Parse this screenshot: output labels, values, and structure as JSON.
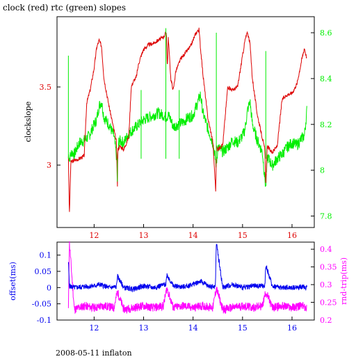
{
  "title": "clock (red) rtc (green) slopes",
  "footer": "2008-05-11 inflaton",
  "colors": {
    "clock": "#dd0000",
    "rtc": "#00ee00",
    "offset": "#0000ee",
    "rtt": "#ff00ff",
    "axis": "#000000"
  },
  "chart_data": [
    {
      "type": "line",
      "title": "clock (red) rtc (green) slopes",
      "ylabel": "clockslope",
      "xlim": [
        11.25,
        16.45
      ],
      "ylim": [
        2.6,
        3.95
      ],
      "y2lim": [
        7.75,
        8.67
      ],
      "xticks": [
        "12",
        "13",
        "14",
        "15",
        "16"
      ],
      "yticks": [
        "3",
        "3.5"
      ],
      "y2ticks": [
        "7.8",
        "8",
        "8.2",
        "8.4",
        "8.6"
      ],
      "series": [
        {
          "name": "clock",
          "axis": "left",
          "x": [
            11.48,
            11.5,
            11.53,
            11.6,
            11.7,
            11.8,
            11.85,
            11.92,
            12.0,
            12.05,
            12.1,
            12.15,
            12.2,
            12.3,
            12.45,
            12.47,
            12.48,
            12.52,
            12.6,
            12.7,
            12.75,
            12.8,
            12.85,
            12.9,
            12.95,
            13.0,
            13.1,
            13.2,
            13.3,
            13.4,
            13.46,
            13.48,
            13.5,
            13.55,
            13.6,
            13.65,
            13.75,
            13.85,
            13.95,
            14.05,
            14.12,
            14.15,
            14.2,
            14.3,
            14.4,
            14.46,
            14.47,
            14.5,
            14.6,
            14.7,
            14.8,
            14.9,
            15.0,
            15.05,
            15.1,
            15.15,
            15.2,
            15.3,
            15.45,
            15.47,
            15.5,
            15.6,
            15.7,
            15.8,
            15.9,
            16.0,
            16.1,
            16.2,
            16.25,
            16.3
          ],
          "values": [
            3.06,
            2.68,
            3.02,
            3.03,
            3.04,
            3.06,
            3.4,
            3.48,
            3.62,
            3.75,
            3.8,
            3.76,
            3.55,
            3.38,
            3.15,
            2.85,
            3.1,
            3.12,
            3.1,
            3.18,
            3.5,
            3.54,
            3.56,
            3.65,
            3.7,
            3.74,
            3.77,
            3.78,
            3.8,
            3.82,
            3.85,
            3.62,
            3.82,
            3.55,
            3.48,
            3.6,
            3.68,
            3.72,
            3.76,
            3.84,
            3.87,
            3.75,
            3.58,
            3.3,
            3.15,
            2.82,
            3.12,
            3.1,
            3.13,
            3.5,
            3.48,
            3.5,
            3.7,
            3.8,
            3.85,
            3.78,
            3.55,
            3.32,
            3.1,
            2.88,
            3.12,
            3.08,
            3.12,
            3.42,
            3.45,
            3.46,
            3.52,
            3.68,
            3.75,
            3.68
          ]
        },
        {
          "name": "rtc",
          "axis": "right",
          "x": [
            11.48,
            11.5,
            11.55,
            11.6,
            11.7,
            11.8,
            11.9,
            12.0,
            12.05,
            12.1,
            12.15,
            12.2,
            12.3,
            12.4,
            12.47,
            12.5,
            12.6,
            12.7,
            12.8,
            12.9,
            13.0,
            13.1,
            13.2,
            13.3,
            13.4,
            13.45,
            13.5,
            13.55,
            13.6,
            13.7,
            13.8,
            13.9,
            14.0,
            14.1,
            14.15,
            14.2,
            14.3,
            14.4,
            14.47,
            14.5,
            14.6,
            14.7,
            14.8,
            14.9,
            15.0,
            15.05,
            15.1,
            15.15,
            15.2,
            15.3,
            15.4,
            15.47,
            15.5,
            15.6,
            15.7,
            15.8,
            15.9,
            16.0,
            16.1,
            16.2,
            16.25,
            16.3
          ],
          "values": [
            8.07,
            8.05,
            8.08,
            8.07,
            8.12,
            8.13,
            8.15,
            8.2,
            8.22,
            8.28,
            8.3,
            8.23,
            8.2,
            8.15,
            8.03,
            8.13,
            8.12,
            8.16,
            8.18,
            8.2,
            8.22,
            8.23,
            8.24,
            8.25,
            8.24,
            8.23,
            8.24,
            8.22,
            8.19,
            8.2,
            8.21,
            8.23,
            8.24,
            8.3,
            8.33,
            8.25,
            8.18,
            8.12,
            8.02,
            8.1,
            8.08,
            8.1,
            8.13,
            8.12,
            8.15,
            8.18,
            8.26,
            8.3,
            8.2,
            8.13,
            8.08,
            7.92,
            8.06,
            8.02,
            8.05,
            8.07,
            8.1,
            8.12,
            8.11,
            8.14,
            8.15,
            8.26
          ]
        }
      ]
    },
    {
      "type": "line",
      "xlim": [
        11.25,
        16.45
      ],
      "ylabel": "offset(ms)",
      "y2label": "rnd-trip(ms)",
      "ylim": [
        -0.1,
        0.14
      ],
      "y2lim": [
        0.2,
        0.42
      ],
      "xticks": [
        "12",
        "13",
        "14",
        "15",
        "16"
      ],
      "yticks": [
        "-0.1",
        "-0.05",
        "0",
        "0.05",
        "0.1"
      ],
      "y2ticks": [
        "0.2",
        "0.25",
        "0.3",
        "0.35",
        "0.4"
      ],
      "series": [
        {
          "name": "offset",
          "axis": "left",
          "x": [
            11.48,
            11.5,
            11.6,
            11.8,
            12.0,
            12.1,
            12.2,
            12.3,
            12.45,
            12.47,
            12.6,
            12.8,
            13.0,
            13.2,
            13.45,
            13.47,
            13.6,
            13.8,
            14.0,
            14.15,
            14.3,
            14.45,
            14.47,
            14.6,
            14.8,
            15.0,
            15.2,
            15.45,
            15.47,
            15.6,
            15.8,
            16.0,
            16.2,
            16.3
          ],
          "values": [
            0.08,
            0.005,
            0.0,
            0.003,
            0.005,
            0.01,
            0.005,
            0.0,
            0.002,
            0.035,
            0.0,
            -0.005,
            0.005,
            0.0,
            0.01,
            0.04,
            0.005,
            0.002,
            0.01,
            0.02,
            0.005,
            0.002,
            0.14,
            0.0,
            0.01,
            0.0,
            0.005,
            0.005,
            0.07,
            0.005,
            0.0,
            0.0,
            0.002,
            0.0
          ]
        },
        {
          "name": "rtt",
          "axis": "right",
          "x": [
            11.48,
            11.5,
            11.6,
            11.8,
            12.0,
            12.2,
            12.4,
            12.47,
            12.6,
            12.8,
            13.0,
            13.2,
            13.4,
            13.47,
            13.6,
            13.8,
            14.0,
            14.2,
            14.4,
            14.47,
            14.6,
            14.8,
            15.0,
            15.2,
            15.4,
            15.47,
            15.6,
            15.8,
            16.0,
            16.2,
            16.3
          ],
          "values": [
            0.23,
            0.42,
            0.23,
            0.24,
            0.235,
            0.24,
            0.235,
            0.28,
            0.23,
            0.235,
            0.24,
            0.235,
            0.24,
            0.29,
            0.235,
            0.24,
            0.235,
            0.24,
            0.235,
            0.29,
            0.23,
            0.235,
            0.24,
            0.235,
            0.24,
            0.28,
            0.235,
            0.24,
            0.235,
            0.24,
            0.235
          ]
        }
      ]
    }
  ]
}
